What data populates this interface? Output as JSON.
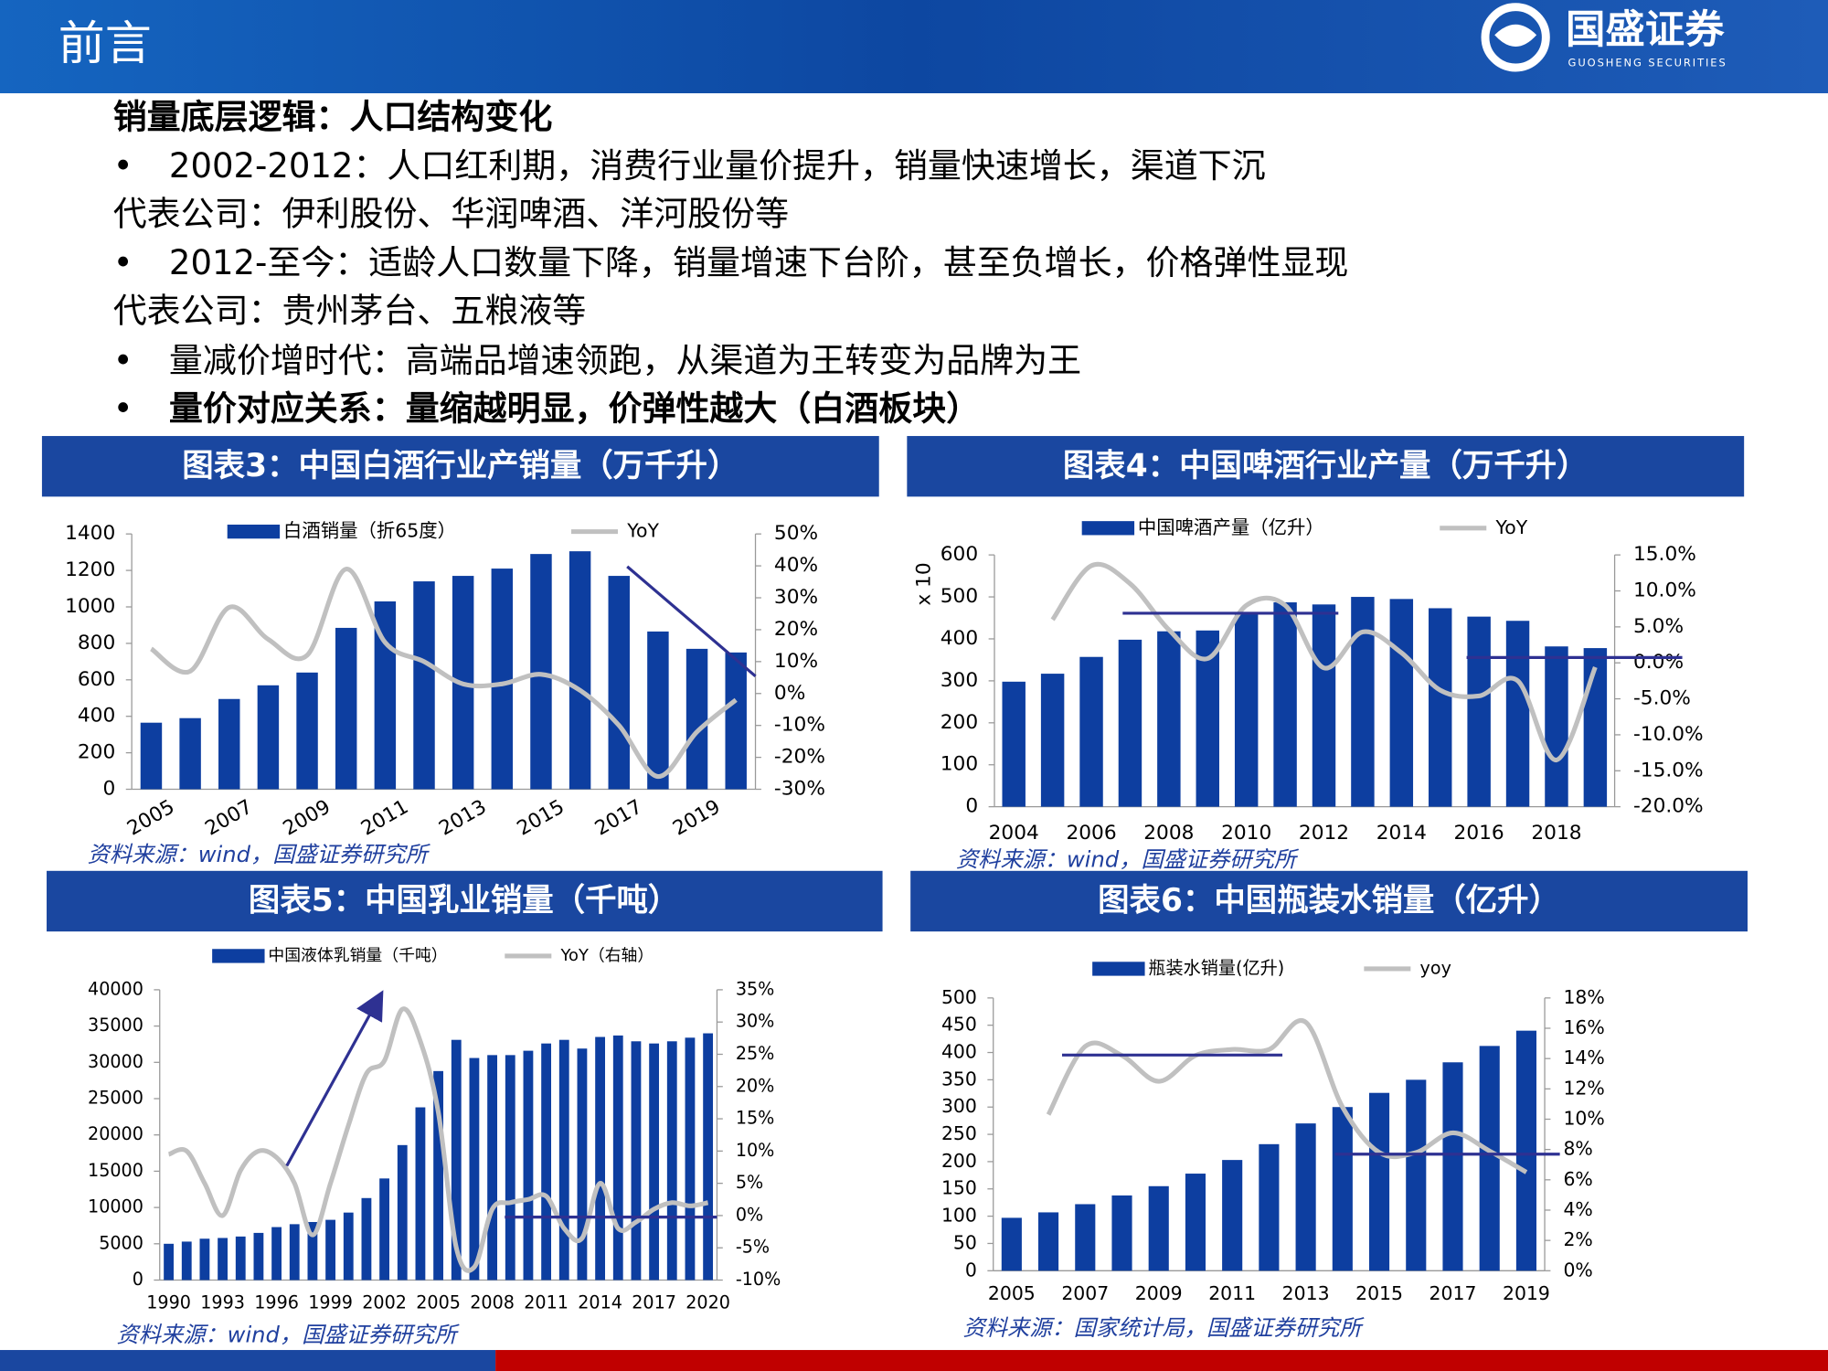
{
  "header": {
    "title": "前言",
    "logo": "国盛证券",
    "logo_en": "GUOSHENG SECURITIES"
  },
  "intro": {
    "heading": "销量底层逻辑：人口结构变化",
    "items": [
      {
        "text": "2002-2012：人口红利期，消费行业量价提升，销量快速增长，渠道下沉",
        "detail": "代表公司：伊利股份、华润啤酒、洋河股份等"
      },
      {
        "text": "2012-至今：适龄人口数量下降，销量增速下台阶，甚至负增长，价格弹性显现",
        "detail": "代表公司：贵州茅台、五粮液等"
      },
      {
        "text": "量减价增时代：高端品增速领跑，从渠道为王转变为品牌为王"
      },
      {
        "text": "量价对应关系：量缩越明显，价弹性越大（白酒板块）"
      }
    ]
  },
  "chart_data": [
    {
      "type": "combo",
      "title": "图表3：中国白酒行业产销量（万千升）",
      "source": "资料来源：wind，国盛证券研究所",
      "categories": [
        "2005",
        null,
        "2007",
        null,
        "2009",
        null,
        "2011",
        null,
        "2013",
        null,
        "2015",
        null,
        "2017",
        null,
        "2019",
        null
      ],
      "series": [
        {
          "name": "白酒销量（折65度）",
          "color": "#0d3ea0",
          "values": [
            365,
            390,
            495,
            570,
            640,
            885,
            1030,
            1140,
            1170,
            1210,
            1290,
            1305,
            1170,
            865,
            770,
            750
          ]
        },
        {
          "name": "YoY",
          "color": "#c0c0c0",
          "axis": "y2",
          "values": [
            14,
            7,
            27,
            17,
            12,
            39,
            16,
            10,
            3,
            3,
            6,
            1,
            -10,
            -26,
            -12,
            -2
          ]
        }
      ],
      "ylim": [
        0,
        1400
      ],
      "yticks": [
        0,
        200,
        400,
        600,
        800,
        1000,
        1200,
        1400
      ],
      "y2lim": [
        -30,
        50
      ],
      "y2ticks": [
        {
          "value": -30,
          "label": "-30%"
        },
        {
          "value": -20,
          "label": "-20%"
        },
        {
          "value": -10,
          "label": "-10%"
        },
        {
          "value": 0,
          "label": "0%"
        },
        {
          "value": 10,
          "label": "10%"
        },
        {
          "value": 20,
          "label": "20%"
        },
        {
          "value": 30,
          "label": "30%"
        },
        {
          "value": 40,
          "label": "40%"
        },
        {
          "value": 50,
          "label": "50%"
        }
      ]
    },
    {
      "type": "combo",
      "title": "图表4：中国啤酒行业产量（万千升）",
      "source": "资料来源：wind，国盛证券研究所",
      "ylabel": "x 10",
      "categories": [
        "2004",
        null,
        "2006",
        null,
        "2008",
        null,
        "2010",
        null,
        "2012",
        null,
        "2014",
        null,
        "2016",
        null,
        "2018",
        null
      ],
      "series": [
        {
          "name": "中国啤酒产量（亿升）",
          "color": "#0d3ea0",
          "values": [
            298,
            317,
            357,
            398,
            418,
            420,
            460,
            487,
            482,
            500,
            495,
            473,
            453,
            443,
            382,
            378
          ]
        },
        {
          "name": "YoY",
          "color": "#c0c0c0",
          "axis": "y2",
          "values": [
            null,
            6,
            13.5,
            11,
            4.6,
            0.6,
            8,
            8,
            -0.7,
            4.3,
            1.4,
            -3.8,
            -4.6,
            -2.5,
            -13.5,
            -0.6
          ]
        }
      ],
      "ylim": [
        0,
        600
      ],
      "yticks": [
        0,
        100,
        200,
        300,
        400,
        500,
        600
      ],
      "y2lim": [
        -20,
        15
      ],
      "y2ticks": [
        {
          "value": -20,
          "label": "-20.0%"
        },
        {
          "value": -15,
          "label": "-15.0%"
        },
        {
          "value": -10,
          "label": "-10.0%"
        },
        {
          "value": -5,
          "label": "-5.0%"
        },
        {
          "value": 0,
          "label": "0.0%"
        },
        {
          "value": 5,
          "label": "5.0%"
        },
        {
          "value": 10,
          "label": "10.0%"
        },
        {
          "value": 15,
          "label": "15.0%"
        }
      ]
    },
    {
      "type": "combo",
      "title": "图表5：中国乳业销量（千吨）",
      "source": "资料来源：wind，国盛证券研究所",
      "categories": [
        "1990",
        null,
        null,
        "1993",
        null,
        null,
        "1996",
        null,
        null,
        "1999",
        null,
        null,
        "2002",
        null,
        null,
        "2005",
        null,
        null,
        "2008",
        null,
        null,
        "2011",
        null,
        null,
        "2014",
        null,
        null,
        "2017",
        null,
        null,
        "2020"
      ],
      "series": [
        {
          "name": "中国液体乳销量（千吨）",
          "color": "#0d3ea0",
          "values": [
            5000,
            5300,
            5700,
            5800,
            6000,
            6500,
            7300,
            7700,
            8000,
            8300,
            9300,
            11300,
            14000,
            18600,
            23800,
            28800,
            33100,
            30600,
            31000,
            31000,
            31600,
            32600,
            33100,
            31900,
            33500,
            33700,
            32900,
            32600,
            32900,
            33400,
            34000
          ]
        },
        {
          "name": "YoY（右轴）",
          "color": "#c0c0c0",
          "axis": "y2",
          "values": [
            9.5,
            10,
            5,
            0,
            7,
            10,
            9,
            5,
            -3,
            5,
            14,
            22,
            24,
            32,
            27,
            16,
            -5,
            -8,
            1,
            2,
            2.5,
            3,
            -2,
            -3.5,
            5,
            -2,
            -1,
            1,
            2,
            1.5,
            2
          ]
        }
      ],
      "ylim": [
        0,
        40000
      ],
      "yticks": [
        0,
        5000,
        10000,
        15000,
        20000,
        25000,
        30000,
        35000,
        40000
      ],
      "y2lim": [
        -10,
        35
      ],
      "y2ticks": [
        {
          "value": -10,
          "label": "-10%"
        },
        {
          "value": -5,
          "label": "-5%"
        },
        {
          "value": 0,
          "label": "0%"
        },
        {
          "value": 5,
          "label": "5%"
        },
        {
          "value": 10,
          "label": "10%"
        },
        {
          "value": 15,
          "label": "15%"
        },
        {
          "value": 20,
          "label": "20%"
        },
        {
          "value": 25,
          "label": "25%"
        },
        {
          "value": 30,
          "label": "30%"
        },
        {
          "value": 35,
          "label": "35%"
        }
      ]
    },
    {
      "type": "combo",
      "title": "图表6：中国瓶装水销量（亿升）",
      "source": "资料来源：国家统计局，国盛证券研究所",
      "categories": [
        "2005",
        null,
        "2007",
        null,
        "2009",
        null,
        "2011",
        null,
        "2013",
        null,
        "2015",
        null,
        "2017",
        null,
        "2019"
      ],
      "series": [
        {
          "name": "瓶装水销量(亿升)",
          "color": "#0d3ea0",
          "values": [
            97,
            107,
            122,
            138,
            155,
            178,
            203,
            232,
            270,
            300,
            326,
            350,
            382,
            412,
            440
          ]
        },
        {
          "name": "yoy",
          "color": "#c0c0c0",
          "axis": "y2",
          "values": [
            null,
            10.3,
            14.8,
            14.2,
            12.5,
            14.2,
            14.6,
            14.6,
            16.4,
            10.8,
            7.8,
            7.8,
            9.1,
            7.9,
            6.5
          ]
        }
      ],
      "ylim": [
        0,
        500
      ],
      "yticks": [
        0,
        50,
        100,
        150,
        200,
        250,
        300,
        350,
        400,
        450,
        500
      ],
      "y2lim": [
        0,
        18
      ],
      "y2ticks": [
        {
          "value": 0,
          "label": "0%"
        },
        {
          "value": 2,
          "label": "2%"
        },
        {
          "value": 4,
          "label": "4%"
        },
        {
          "value": 6,
          "label": "6%"
        },
        {
          "value": 8,
          "label": "8%"
        },
        {
          "value": 10,
          "label": "10%"
        },
        {
          "value": 12,
          "label": "12%"
        },
        {
          "value": 14,
          "label": "14%"
        },
        {
          "value": 16,
          "label": "16%"
        },
        {
          "value": 18,
          "label": "18%"
        }
      ]
    }
  ]
}
